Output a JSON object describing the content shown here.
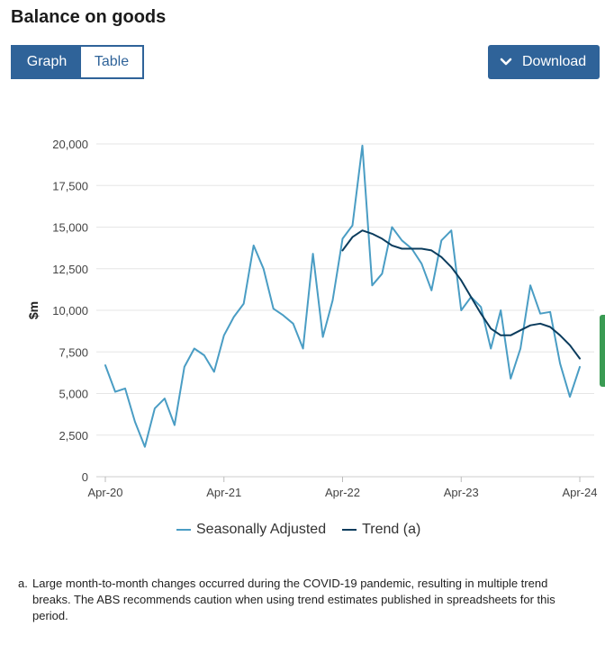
{
  "title": "Balance on goods",
  "tabs": {
    "graph": "Graph",
    "table": "Table"
  },
  "download_label": "Download",
  "colors": {
    "primary": "#2f6399",
    "seasonal": "#4a9dc4",
    "trend": "#0b3c5d",
    "side_tab": "#3a9b53"
  },
  "chart_data": {
    "type": "line",
    "ylabel": "$m",
    "ylim": [
      0,
      20000
    ],
    "yticks": [
      0,
      2500,
      5000,
      7500,
      10000,
      12500,
      15000,
      17500,
      20000
    ],
    "ytick_labels": [
      "0",
      "2,500",
      "5,000",
      "7,500",
      "10,000",
      "12,500",
      "15,000",
      "17,500",
      "20,000"
    ],
    "x_range": [
      0,
      49
    ],
    "x_ticks": [
      {
        "pos": 0,
        "label": "Apr-20"
      },
      {
        "pos": 12,
        "label": "Apr-21"
      },
      {
        "pos": 24,
        "label": "Apr-22"
      },
      {
        "pos": 36,
        "label": "Apr-23"
      },
      {
        "pos": 48,
        "label": "Apr-24"
      }
    ],
    "series": [
      {
        "name": "Seasonally Adjusted",
        "start": 0,
        "values": [
          6700,
          5100,
          5300,
          3300,
          1800,
          4100,
          4700,
          3100,
          6600,
          7700,
          7300,
          6300,
          8500,
          9600,
          10400,
          13900,
          12500,
          10100,
          9700,
          9200,
          7700,
          13400,
          8400,
          10600,
          14300,
          15100,
          19900,
          11500,
          12200,
          15000,
          14200,
          13700,
          12800,
          11200,
          14200,
          14800,
          10000,
          10800,
          10200,
          7700,
          10000,
          5900,
          7700,
          11500,
          9800,
          9900,
          6800,
          4800,
          6600
        ]
      },
      {
        "name": "Trend (a)",
        "start": 24,
        "values": [
          13600,
          14400,
          14800,
          14600,
          14300,
          13900,
          13700,
          13700,
          13700,
          13600,
          13200,
          12600,
          11800,
          10800,
          9800,
          8900,
          8500,
          8500,
          8800,
          9100,
          9200,
          9000,
          8500,
          7900,
          7100
        ]
      }
    ]
  },
  "legend": {
    "seasonal": "Seasonally Adjusted",
    "trend": "Trend (a)"
  },
  "note": {
    "marker": "a.",
    "text": "Large month-to-month changes occurred during the COVID-19 pandemic, resulting in multiple trend breaks. The ABS recommends caution when using trend estimates published in spreadsheets for this period."
  }
}
